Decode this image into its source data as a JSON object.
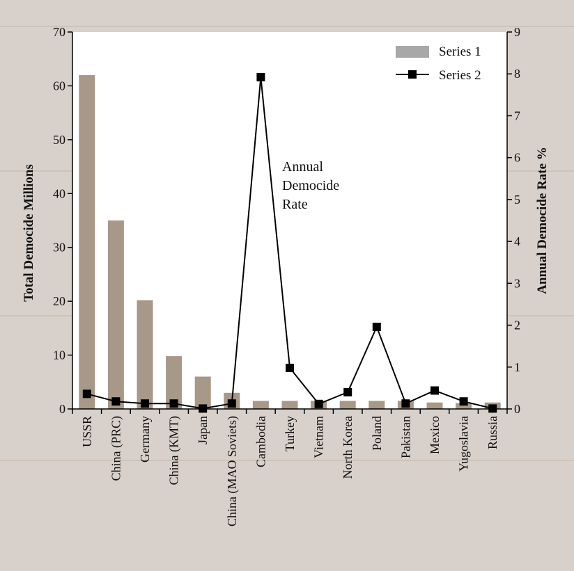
{
  "chart_data": {
    "type": "bar",
    "categories": [
      "USSR",
      "China (PRC)",
      "Germany",
      "China (KMT)",
      "Japan",
      "China (MAO Soviets)",
      "Cambodia",
      "Turkey",
      "Vietnam",
      "North Korea",
      "Poland",
      "Pakistan",
      "Mexico",
      "Yugoslavia",
      "Russia"
    ],
    "series": [
      {
        "name": "Series 1",
        "type": "bar",
        "axis": "left",
        "values": [
          62,
          35,
          20.2,
          9.8,
          6,
          3,
          1.5,
          1.5,
          1.5,
          1.5,
          1.5,
          1.5,
          1.2,
          1.1,
          1.2
        ]
      },
      {
        "name": "Series 2",
        "type": "line",
        "axis": "right",
        "values": [
          0.36,
          0.18,
          0.13,
          0.13,
          0.01,
          0.13,
          7.92,
          0.98,
          0.12,
          0.4,
          1.96,
          0.13,
          0.44,
          0.18,
          0.01
        ]
      }
    ],
    "ylabel_left": "Total Democide Millions",
    "ylabel_right": "Annual Democide Rate %",
    "ylim_left": [
      0,
      70
    ],
    "ylim_right": [
      0,
      9
    ],
    "yticks_left": [
      "0",
      "10",
      "20",
      "30",
      "40",
      "50",
      "60",
      "70"
    ],
    "yticks_right": [
      "0",
      "1",
      "2",
      "3",
      "4",
      "5",
      "6",
      "7",
      "8",
      "9"
    ],
    "annotation_lines": [
      "Annual",
      "Democide",
      "Rate"
    ],
    "legend_position": "top-right",
    "grid": false,
    "colors": {
      "bar": "#a89888",
      "line": "#000000",
      "legend_bar": "#a8a8a8",
      "plot_bg": "#ffffff",
      "page_bg": "#d8d0ca"
    }
  }
}
